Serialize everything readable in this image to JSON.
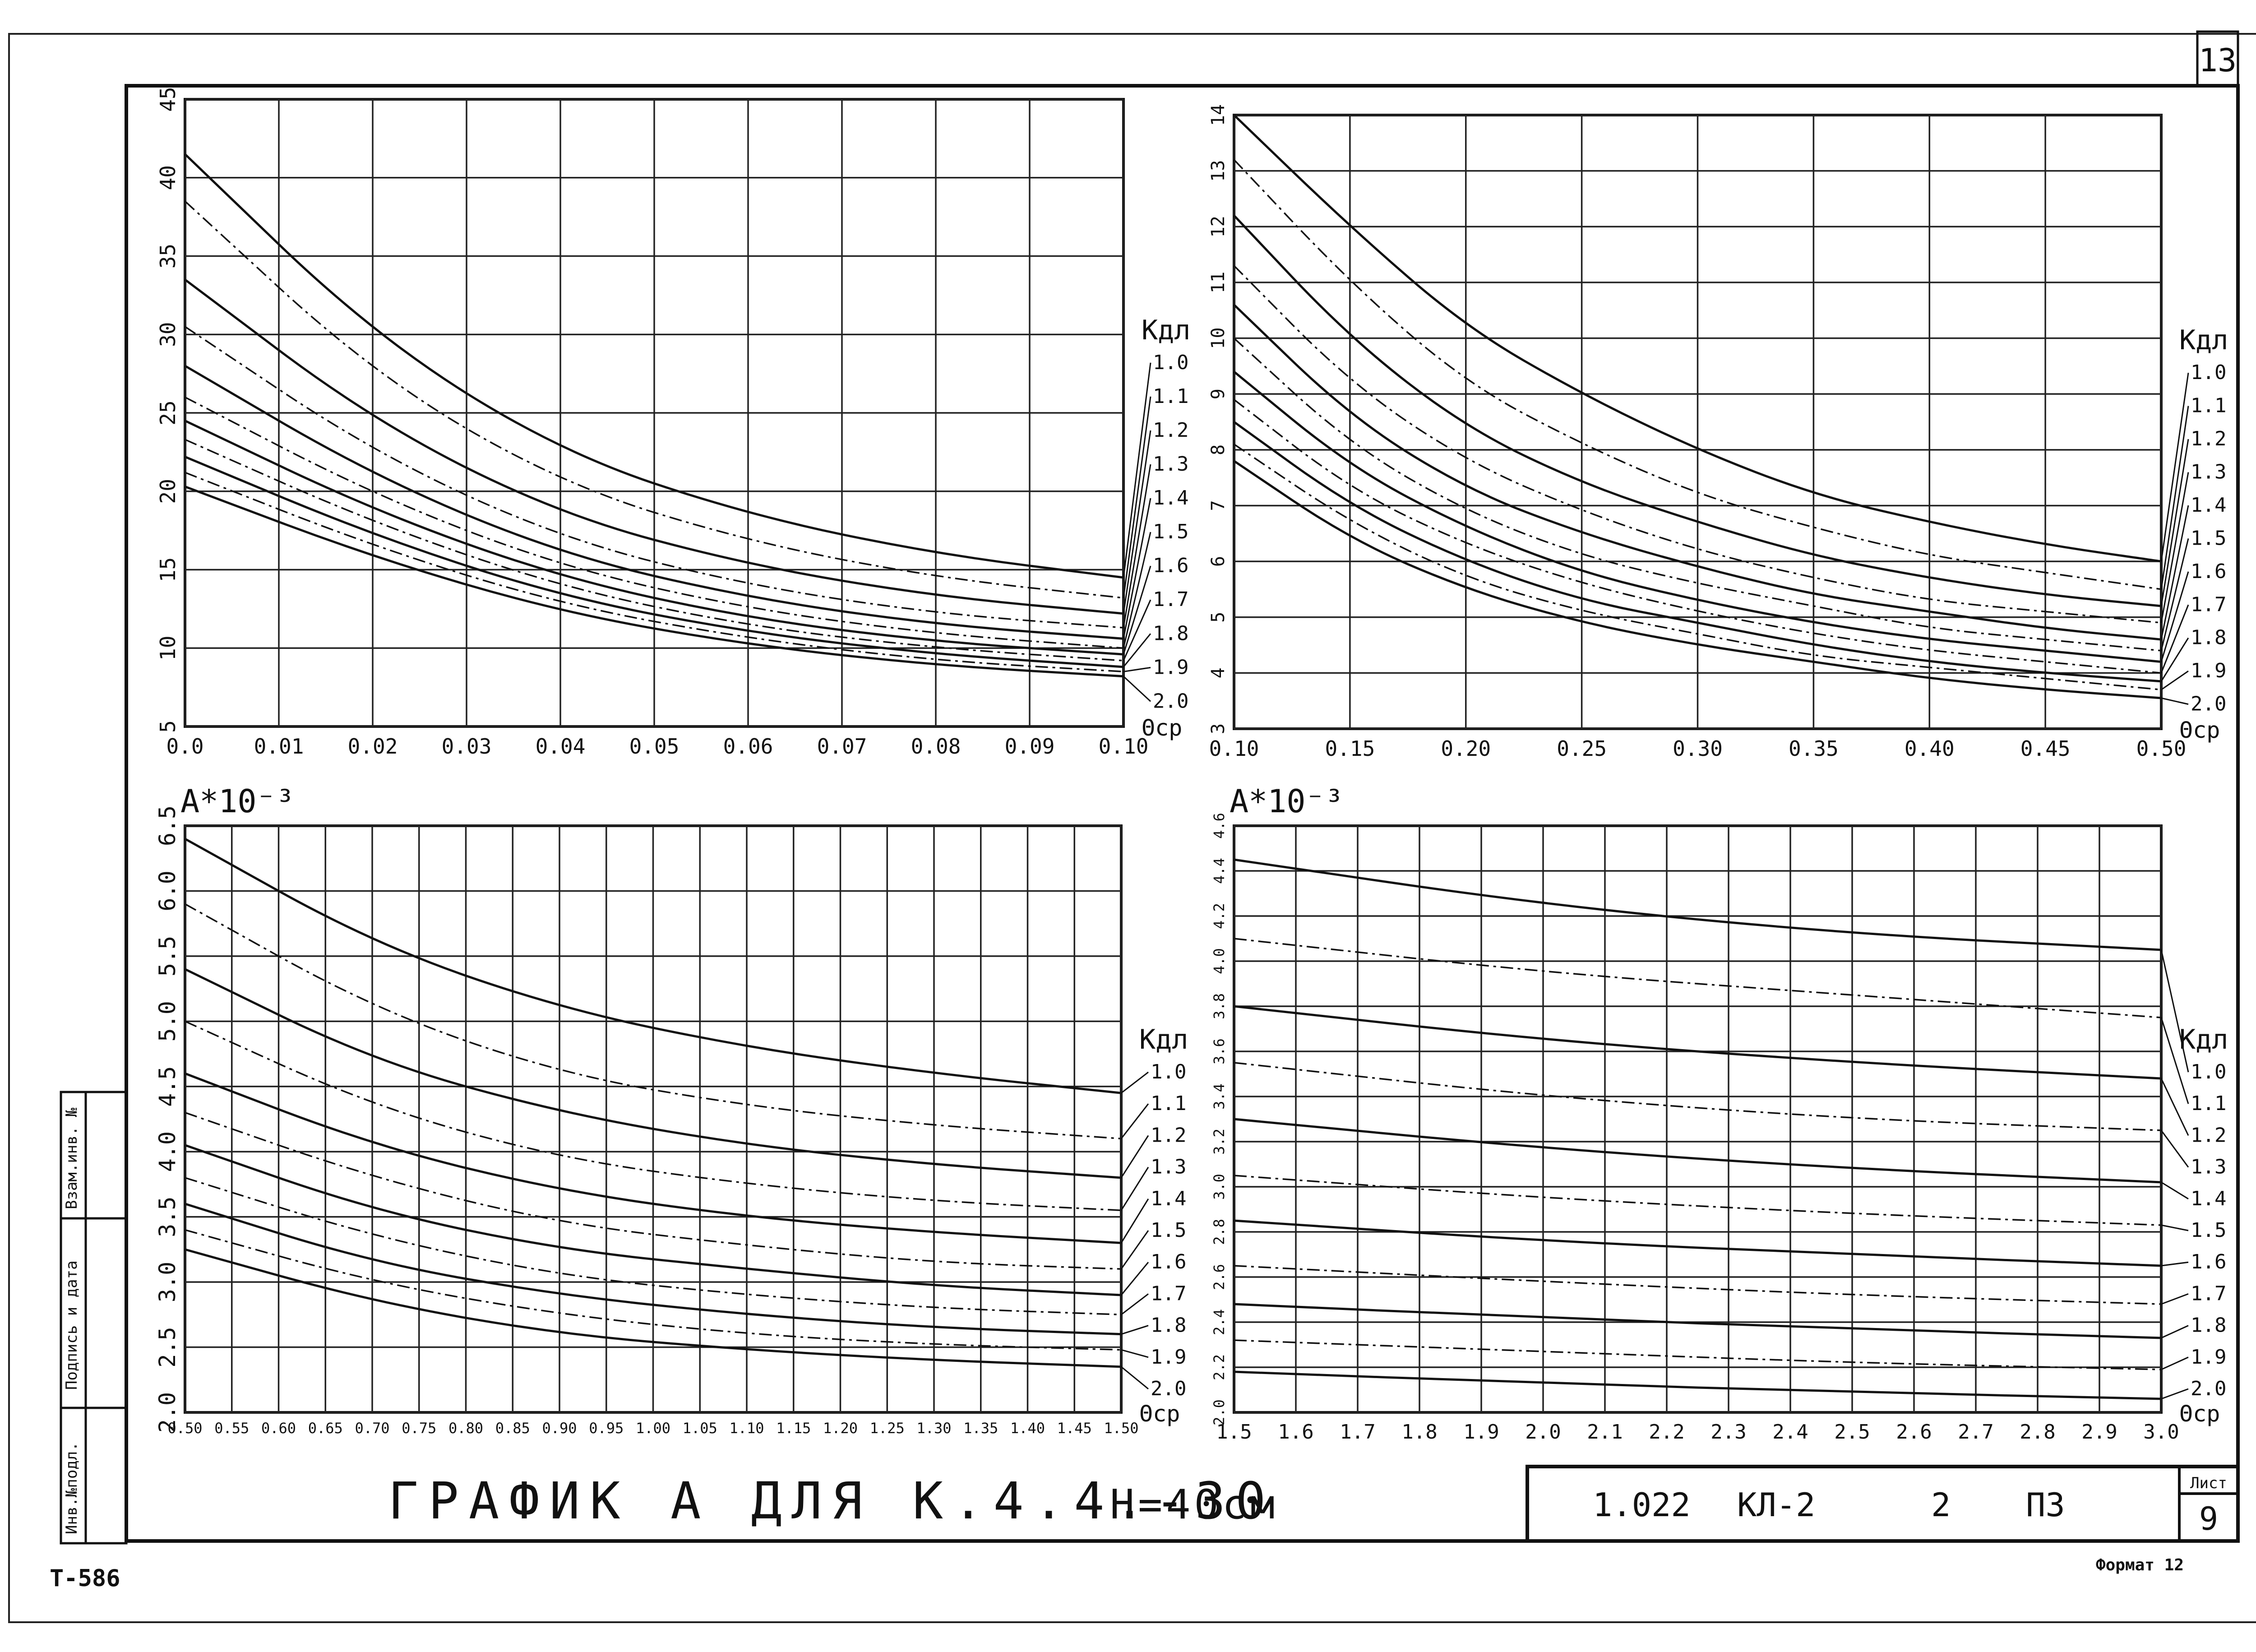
{
  "page_number": "13",
  "title": "ГРАФИК А ДЛЯ К.4.4.-30",
  "height_label": "Н=40см",
  "left_code": "Т-586",
  "format_label": "Формат 12",
  "stamp": {
    "code": "1.022",
    "series": "КЛ-2",
    "issue": "2",
    "doc": "ПЗ",
    "sheet_label": "Лист",
    "sheet_number": "9"
  },
  "side_stamp": [
    "Инв.№подл.",
    "Подпись и дата",
    "Взам.инв. №"
  ],
  "chart_data": [
    {
      "type": "line",
      "id": "top-left",
      "ylabel": "",
      "xlabel": "Θср",
      "legend_title": "Кдл",
      "x_ticks": [
        "0.0",
        "0.01",
        "0.02",
        "0.03",
        "0.04",
        "0.05",
        "0.06",
        "0.07",
        "0.08",
        "0.09",
        "0.10"
      ],
      "xlim": [
        0.0,
        0.1
      ],
      "y_ticks": [
        "5",
        "10",
        "15",
        "20",
        "25",
        "30",
        "35",
        "40",
        "45"
      ],
      "ylim": [
        5,
        45
      ],
      "grid": true,
      "series": [
        {
          "name": "1.0",
          "x": [
            0.0,
            0.02,
            0.04,
            0.06,
            0.08,
            0.1
          ],
          "values": [
            41.5,
            30,
            22.5,
            18.5,
            16,
            14.5
          ]
        },
        {
          "name": "1.1",
          "x": [
            0.0,
            0.02,
            0.04,
            0.06,
            0.08,
            0.1
          ],
          "values": [
            38.5,
            27.5,
            20.5,
            16.8,
            14.5,
            13.2
          ]
        },
        {
          "name": "1.2",
          "x": [
            0.0,
            0.02,
            0.04,
            0.06,
            0.08,
            0.1
          ],
          "values": [
            33.5,
            24.5,
            18.5,
            15.3,
            13.3,
            12.2
          ]
        },
        {
          "name": "1.3",
          "x": [
            0.0,
            0.02,
            0.04,
            0.06,
            0.08,
            0.1
          ],
          "values": [
            30.5,
            22.5,
            17,
            14,
            12.2,
            11.3
          ]
        },
        {
          "name": "1.4",
          "x": [
            0.0,
            0.02,
            0.04,
            0.06,
            0.08,
            0.1
          ],
          "values": [
            28,
            21,
            16,
            13.2,
            11.5,
            10.6
          ]
        },
        {
          "name": "1.5",
          "x": [
            0.0,
            0.02,
            0.04,
            0.06,
            0.08,
            0.1
          ],
          "values": [
            26,
            19.8,
            15.2,
            12.5,
            10.9,
            10
          ]
        },
        {
          "name": "1.6",
          "x": [
            0.0,
            0.02,
            0.04,
            0.06,
            0.08,
            0.1
          ],
          "values": [
            24.5,
            18.8,
            14.5,
            11.9,
            10.4,
            9.6
          ]
        },
        {
          "name": "1.7",
          "x": [
            0.0,
            0.02,
            0.04,
            0.06,
            0.08,
            0.1
          ],
          "values": [
            23.3,
            18,
            13.9,
            11.4,
            10,
            9.2
          ]
        },
        {
          "name": "1.8",
          "x": [
            0.0,
            0.02,
            0.04,
            0.06,
            0.08,
            0.1
          ],
          "values": [
            22.2,
            17.2,
            13.3,
            11,
            9.6,
            8.8
          ]
        },
        {
          "name": "1.9",
          "x": [
            0.0,
            0.02,
            0.04,
            0.06,
            0.08,
            0.1
          ],
          "values": [
            21.2,
            16.5,
            12.8,
            10.6,
            9.2,
            8.5
          ]
        },
        {
          "name": "2.0",
          "x": [
            0.0,
            0.02,
            0.04,
            0.06,
            0.08,
            0.1
          ],
          "values": [
            20.3,
            15.8,
            12.3,
            10.2,
            8.9,
            8.2
          ]
        }
      ]
    },
    {
      "type": "line",
      "id": "top-right",
      "ylabel": "",
      "xlabel": "Θср",
      "legend_title": "Кдл",
      "x_ticks": [
        "0.10",
        "0.15",
        "0.20",
        "0.25",
        "0.30",
        "0.35",
        "0.40",
        "0.45",
        "0.50"
      ],
      "xlim": [
        0.1,
        0.5
      ],
      "y_ticks": [
        "3",
        "4",
        "5",
        "6",
        "7",
        "8",
        "9",
        "10",
        "11",
        "12",
        "13",
        "14"
      ],
      "ylim": [
        3,
        14
      ],
      "grid": true,
      "series": [
        {
          "name": "1.0",
          "x": [
            0.1,
            0.15,
            0.2,
            0.25,
            0.3,
            0.35,
            0.4,
            0.45,
            0.5
          ],
          "values": [
            14,
            12,
            10.2,
            9,
            8,
            7.2,
            6.7,
            6.3,
            6
          ]
        },
        {
          "name": "1.1",
          "x": [
            0.1,
            0.15,
            0.2,
            0.25,
            0.3,
            0.35,
            0.4,
            0.45,
            0.5
          ],
          "values": [
            13.2,
            11,
            9.2,
            8.1,
            7.2,
            6.6,
            6.1,
            5.8,
            5.5
          ]
        },
        {
          "name": "1.2",
          "x": [
            0.1,
            0.15,
            0.2,
            0.25,
            0.3,
            0.35,
            0.4,
            0.45,
            0.5
          ],
          "values": [
            12.2,
            10,
            8.4,
            7.4,
            6.7,
            6.1,
            5.7,
            5.4,
            5.2
          ]
        },
        {
          "name": "1.3",
          "x": [
            0.1,
            0.15,
            0.2,
            0.25,
            0.3,
            0.35,
            0.4,
            0.45,
            0.5
          ],
          "values": [
            11.3,
            9.2,
            7.8,
            6.9,
            6.2,
            5.7,
            5.3,
            5.1,
            4.9
          ]
        },
        {
          "name": "1.4",
          "x": [
            0.1,
            0.15,
            0.2,
            0.25,
            0.3,
            0.35,
            0.4,
            0.45,
            0.5
          ],
          "values": [
            10.6,
            8.6,
            7.3,
            6.5,
            5.9,
            5.4,
            5.1,
            4.8,
            4.6
          ]
        },
        {
          "name": "1.5",
          "x": [
            0.1,
            0.15,
            0.2,
            0.25,
            0.3,
            0.35,
            0.4,
            0.45,
            0.5
          ],
          "values": [
            10,
            8.1,
            6.9,
            6.1,
            5.6,
            5.2,
            4.8,
            4.6,
            4.4
          ]
        },
        {
          "name": "1.6",
          "x": [
            0.1,
            0.15,
            0.2,
            0.25,
            0.3,
            0.35,
            0.4,
            0.45,
            0.5
          ],
          "values": [
            9.4,
            7.7,
            6.6,
            5.8,
            5.3,
            4.9,
            4.6,
            4.4,
            4.2
          ]
        },
        {
          "name": "1.7",
          "x": [
            0.1,
            0.15,
            0.2,
            0.25,
            0.3,
            0.35,
            0.4,
            0.45,
            0.5
          ],
          "values": [
            8.9,
            7.3,
            6.3,
            5.6,
            5.1,
            4.7,
            4.4,
            4.2,
            4.0
          ]
        },
        {
          "name": "1.8",
          "x": [
            0.1,
            0.15,
            0.2,
            0.25,
            0.3,
            0.35,
            0.4,
            0.45,
            0.5
          ],
          "values": [
            8.5,
            7,
            6,
            5.3,
            4.9,
            4.5,
            4.2,
            4.0,
            3.85
          ]
        },
        {
          "name": "1.9",
          "x": [
            0.1,
            0.15,
            0.2,
            0.25,
            0.3,
            0.35,
            0.4,
            0.45,
            0.5
          ],
          "values": [
            8.1,
            6.7,
            5.7,
            5.1,
            4.7,
            4.3,
            4.1,
            3.9,
            3.7
          ]
        },
        {
          "name": "2.0",
          "x": [
            0.1,
            0.15,
            0.2,
            0.25,
            0.3,
            0.35,
            0.4,
            0.45,
            0.5
          ],
          "values": [
            7.8,
            6.4,
            5.5,
            4.9,
            4.5,
            4.2,
            3.9,
            3.7,
            3.55
          ]
        }
      ]
    },
    {
      "type": "line",
      "id": "bottom-left",
      "ylabel": "А*10⁻³",
      "xlabel": "Θср",
      "legend_title": "Кдл",
      "x_ticks": [
        "0.50",
        "0.55",
        "0.60",
        "0.65",
        "0.70",
        "0.75",
        "0.80",
        "0.85",
        "0.90",
        "0.95",
        "1.00",
        "1.05",
        "1.10",
        "1.15",
        "1.20",
        "1.25",
        "1.30",
        "1.35",
        "1.40",
        "1.45",
        "1.50"
      ],
      "xlim": [
        0.5,
        1.5
      ],
      "y_ticks": [
        "2.0",
        "2.5",
        "3.0",
        "3.5",
        "4.0",
        "4.5",
        "5.0",
        "5.5",
        "6.0",
        "6.5"
      ],
      "ylim": [
        2.0,
        6.5
      ],
      "grid": true,
      "series": [
        {
          "name": "1.0",
          "x": [
            0.5,
            0.7,
            0.9,
            1.1,
            1.3,
            1.5
          ],
          "values": [
            6.4,
            5.6,
            5.1,
            4.8,
            4.6,
            4.45
          ]
        },
        {
          "name": "1.1",
          "x": [
            0.5,
            0.7,
            0.9,
            1.1,
            1.3,
            1.5
          ],
          "values": [
            5.9,
            5.1,
            4.6,
            4.35,
            4.2,
            4.1
          ]
        },
        {
          "name": "1.2",
          "x": [
            0.5,
            0.7,
            0.9,
            1.1,
            1.3,
            1.5
          ],
          "values": [
            5.4,
            4.7,
            4.3,
            4.05,
            3.9,
            3.8
          ]
        },
        {
          "name": "1.3",
          "x": [
            0.5,
            0.7,
            0.9,
            1.1,
            1.3,
            1.5
          ],
          "values": [
            5.0,
            4.35,
            3.95,
            3.75,
            3.62,
            3.55
          ]
        },
        {
          "name": "1.4",
          "x": [
            0.5,
            0.7,
            0.9,
            1.1,
            1.3,
            1.5
          ],
          "values": [
            4.6,
            4.05,
            3.7,
            3.5,
            3.38,
            3.3
          ]
        },
        {
          "name": "1.5",
          "x": [
            0.5,
            0.7,
            0.9,
            1.1,
            1.3,
            1.5
          ],
          "values": [
            4.3,
            3.8,
            3.45,
            3.28,
            3.15,
            3.1
          ]
        },
        {
          "name": "1.6",
          "x": [
            0.5,
            0.7,
            0.9,
            1.1,
            1.3,
            1.5
          ],
          "values": [
            4.05,
            3.55,
            3.25,
            3.1,
            2.97,
            2.9
          ]
        },
        {
          "name": "1.7",
          "x": [
            0.5,
            0.7,
            0.9,
            1.1,
            1.3,
            1.5
          ],
          "values": [
            3.8,
            3.35,
            3.05,
            2.9,
            2.8,
            2.75
          ]
        },
        {
          "name": "1.8",
          "x": [
            0.5,
            0.7,
            0.9,
            1.1,
            1.3,
            1.5
          ],
          "values": [
            3.6,
            3.15,
            2.9,
            2.75,
            2.65,
            2.6
          ]
        },
        {
          "name": "1.9",
          "x": [
            0.5,
            0.7,
            0.9,
            1.1,
            1.3,
            1.5
          ],
          "values": [
            3.4,
            3.0,
            2.75,
            2.6,
            2.52,
            2.48
          ]
        },
        {
          "name": "2.0",
          "x": [
            0.5,
            0.7,
            0.9,
            1.1,
            1.3,
            1.5
          ],
          "values": [
            3.25,
            2.85,
            2.6,
            2.48,
            2.4,
            2.35
          ]
        }
      ]
    },
    {
      "type": "line",
      "id": "bottom-right",
      "ylabel": "А*10⁻³",
      "xlabel": "Θср",
      "legend_title": "Кдл",
      "x_ticks": [
        "1.5",
        "1.6",
        "1.7",
        "1.8",
        "1.9",
        "2.0",
        "2.1",
        "2.2",
        "2.3",
        "2.4",
        "2.5",
        "2.6",
        "2.7",
        "2.8",
        "2.9",
        "3.0"
      ],
      "xlim": [
        1.5,
        3.0
      ],
      "y_ticks": [
        "2.0",
        "2.2",
        "2.4",
        "2.6",
        "2.8",
        "3.0",
        "3.2",
        "3.4",
        "3.6",
        "3.8",
        "4.0",
        "4.2",
        "4.4",
        "4.6"
      ],
      "ylim": [
        2.0,
        4.6
      ],
      "grid": true,
      "series": [
        {
          "name": "1.0",
          "x": [
            1.5,
            2.0,
            2.5,
            3.0
          ],
          "values": [
            4.45,
            4.25,
            4.12,
            4.05
          ]
        },
        {
          "name": "1.1",
          "x": [
            1.5,
            2.0,
            2.5,
            3.0
          ],
          "values": [
            4.1,
            3.95,
            3.85,
            3.75
          ]
        },
        {
          "name": "1.2",
          "x": [
            1.5,
            2.0,
            2.5,
            3.0
          ],
          "values": [
            3.8,
            3.65,
            3.55,
            3.48
          ]
        },
        {
          "name": "1.3",
          "x": [
            1.5,
            2.0,
            2.5,
            3.0
          ],
          "values": [
            3.55,
            3.4,
            3.3,
            3.25
          ]
        },
        {
          "name": "1.4",
          "x": [
            1.5,
            2.0,
            2.5,
            3.0
          ],
          "values": [
            3.3,
            3.17,
            3.08,
            3.02
          ]
        },
        {
          "name": "1.5",
          "x": [
            1.5,
            2.0,
            2.5,
            3.0
          ],
          "values": [
            3.05,
            2.95,
            2.88,
            2.83
          ]
        },
        {
          "name": "1.6",
          "x": [
            1.5,
            2.0,
            2.5,
            3.0
          ],
          "values": [
            2.85,
            2.76,
            2.7,
            2.65
          ]
        },
        {
          "name": "1.7",
          "x": [
            1.5,
            2.0,
            2.5,
            3.0
          ],
          "values": [
            2.65,
            2.58,
            2.52,
            2.48
          ]
        },
        {
          "name": "1.8",
          "x": [
            1.5,
            2.0,
            2.5,
            3.0
          ],
          "values": [
            2.48,
            2.42,
            2.37,
            2.33
          ]
        },
        {
          "name": "1.9",
          "x": [
            1.5,
            2.0,
            2.5,
            3.0
          ],
          "values": [
            2.32,
            2.27,
            2.22,
            2.19
          ]
        },
        {
          "name": "2.0",
          "x": [
            1.5,
            2.0,
            2.5,
            3.0
          ],
          "values": [
            2.18,
            2.13,
            2.09,
            2.06
          ]
        }
      ]
    }
  ]
}
